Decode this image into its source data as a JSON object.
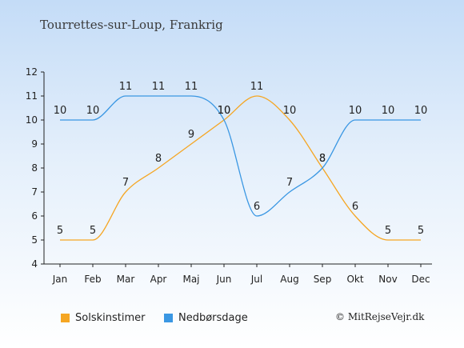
{
  "chart_data": {
    "type": "line",
    "title": "Tourrettes-sur-Loup, Frankrig",
    "categories": [
      "Jan",
      "Feb",
      "Mar",
      "Apr",
      "Maj",
      "Jun",
      "Jul",
      "Aug",
      "Sep",
      "Okt",
      "Nov",
      "Dec"
    ],
    "ylim": [
      4,
      12
    ],
    "yticks": [
      4,
      5,
      6,
      7,
      8,
      9,
      10,
      11,
      12
    ],
    "grid": false,
    "legend_position": "bottom",
    "series": [
      {
        "name": "Solskinstimer",
        "color": "#f5a623",
        "values": [
          5,
          5,
          7,
          8,
          9,
          10,
          11,
          10,
          8,
          6,
          5,
          5
        ]
      },
      {
        "name": "Nedbørsdage",
        "color": "#3a97e3",
        "values": [
          10,
          10,
          11,
          11,
          11,
          10,
          6,
          7,
          8,
          10,
          10,
          10
        ]
      }
    ]
  },
  "credit": "© MitRejseVejr.dk"
}
